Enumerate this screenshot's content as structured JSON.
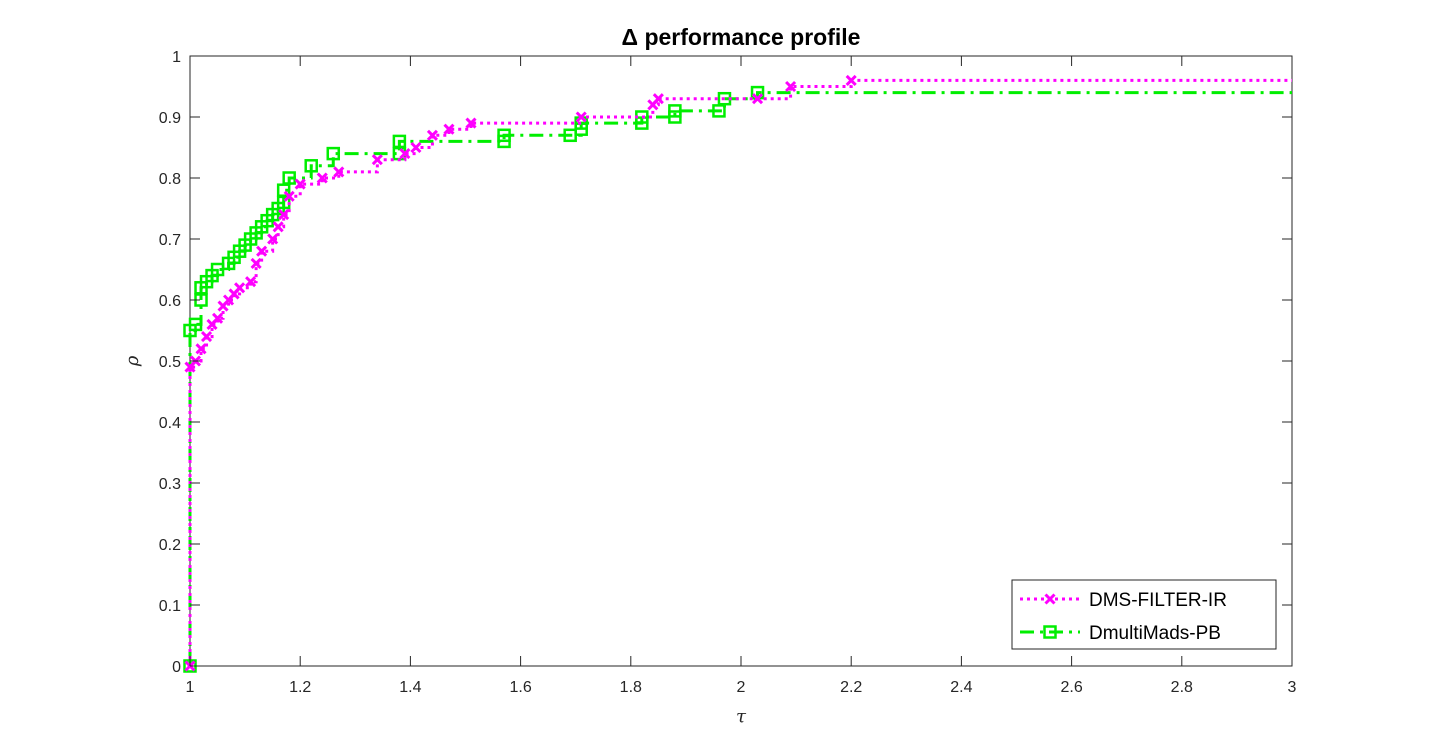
{
  "chart_data": {
    "type": "line",
    "title": "Δ performance profile",
    "xlabel": "τ",
    "ylabel": "ρ",
    "xlim": [
      1,
      3
    ],
    "ylim": [
      0,
      1
    ],
    "x_ticks": [
      "1",
      "1.2",
      "1.4",
      "1.6",
      "1.8",
      "2",
      "2.2",
      "2.4",
      "2.6",
      "2.8",
      "3"
    ],
    "y_ticks": [
      "0",
      "0.1",
      "0.2",
      "0.3",
      "0.4",
      "0.5",
      "0.6",
      "0.7",
      "0.8",
      "0.9",
      "1"
    ],
    "grid": false,
    "legend_position": "bottom-right",
    "series": [
      {
        "name": "DMS-FILTER-IR",
        "color": "#ff00ff",
        "line_style": "dotted",
        "marker": "x",
        "points": [
          [
            1.0,
            0.0
          ],
          [
            1.0,
            0.49
          ],
          [
            1.01,
            0.5
          ],
          [
            1.02,
            0.52
          ],
          [
            1.03,
            0.54
          ],
          [
            1.04,
            0.56
          ],
          [
            1.05,
            0.57
          ],
          [
            1.06,
            0.59
          ],
          [
            1.07,
            0.6
          ],
          [
            1.08,
            0.61
          ],
          [
            1.09,
            0.62
          ],
          [
            1.11,
            0.63
          ],
          [
            1.12,
            0.66
          ],
          [
            1.13,
            0.68
          ],
          [
            1.15,
            0.7
          ],
          [
            1.16,
            0.72
          ],
          [
            1.17,
            0.74
          ],
          [
            1.18,
            0.77
          ],
          [
            1.2,
            0.79
          ],
          [
            1.24,
            0.8
          ],
          [
            1.27,
            0.81
          ],
          [
            1.34,
            0.83
          ],
          [
            1.39,
            0.84
          ],
          [
            1.41,
            0.85
          ],
          [
            1.44,
            0.87
          ],
          [
            1.47,
            0.88
          ],
          [
            1.51,
            0.89
          ],
          [
            1.71,
            0.9
          ],
          [
            1.84,
            0.92
          ],
          [
            1.85,
            0.93
          ],
          [
            2.03,
            0.93
          ],
          [
            2.09,
            0.95
          ],
          [
            2.2,
            0.96
          ],
          [
            3.0,
            0.96
          ]
        ]
      },
      {
        "name": "DmultiMads-PB",
        "color": "#00ee00",
        "line_style": "dashdot",
        "marker": "square",
        "points": [
          [
            1.0,
            0.0
          ],
          [
            1.0,
            0.55
          ],
          [
            1.01,
            0.56
          ],
          [
            1.02,
            0.6
          ],
          [
            1.02,
            0.62
          ],
          [
            1.03,
            0.63
          ],
          [
            1.04,
            0.64
          ],
          [
            1.05,
            0.65
          ],
          [
            1.07,
            0.66
          ],
          [
            1.08,
            0.67
          ],
          [
            1.09,
            0.68
          ],
          [
            1.1,
            0.69
          ],
          [
            1.11,
            0.7
          ],
          [
            1.12,
            0.71
          ],
          [
            1.13,
            0.72
          ],
          [
            1.14,
            0.73
          ],
          [
            1.15,
            0.74
          ],
          [
            1.16,
            0.75
          ],
          [
            1.17,
            0.76
          ],
          [
            1.17,
            0.78
          ],
          [
            1.18,
            0.8
          ],
          [
            1.22,
            0.82
          ],
          [
            1.26,
            0.84
          ],
          [
            1.38,
            0.84
          ],
          [
            1.38,
            0.86
          ],
          [
            1.57,
            0.86
          ],
          [
            1.57,
            0.87
          ],
          [
            1.69,
            0.87
          ],
          [
            1.71,
            0.88
          ],
          [
            1.71,
            0.89
          ],
          [
            1.82,
            0.89
          ],
          [
            1.82,
            0.9
          ],
          [
            1.88,
            0.9
          ],
          [
            1.88,
            0.91
          ],
          [
            1.96,
            0.91
          ],
          [
            1.97,
            0.93
          ],
          [
            2.03,
            0.94
          ],
          [
            3.0,
            0.94
          ]
        ]
      }
    ]
  }
}
